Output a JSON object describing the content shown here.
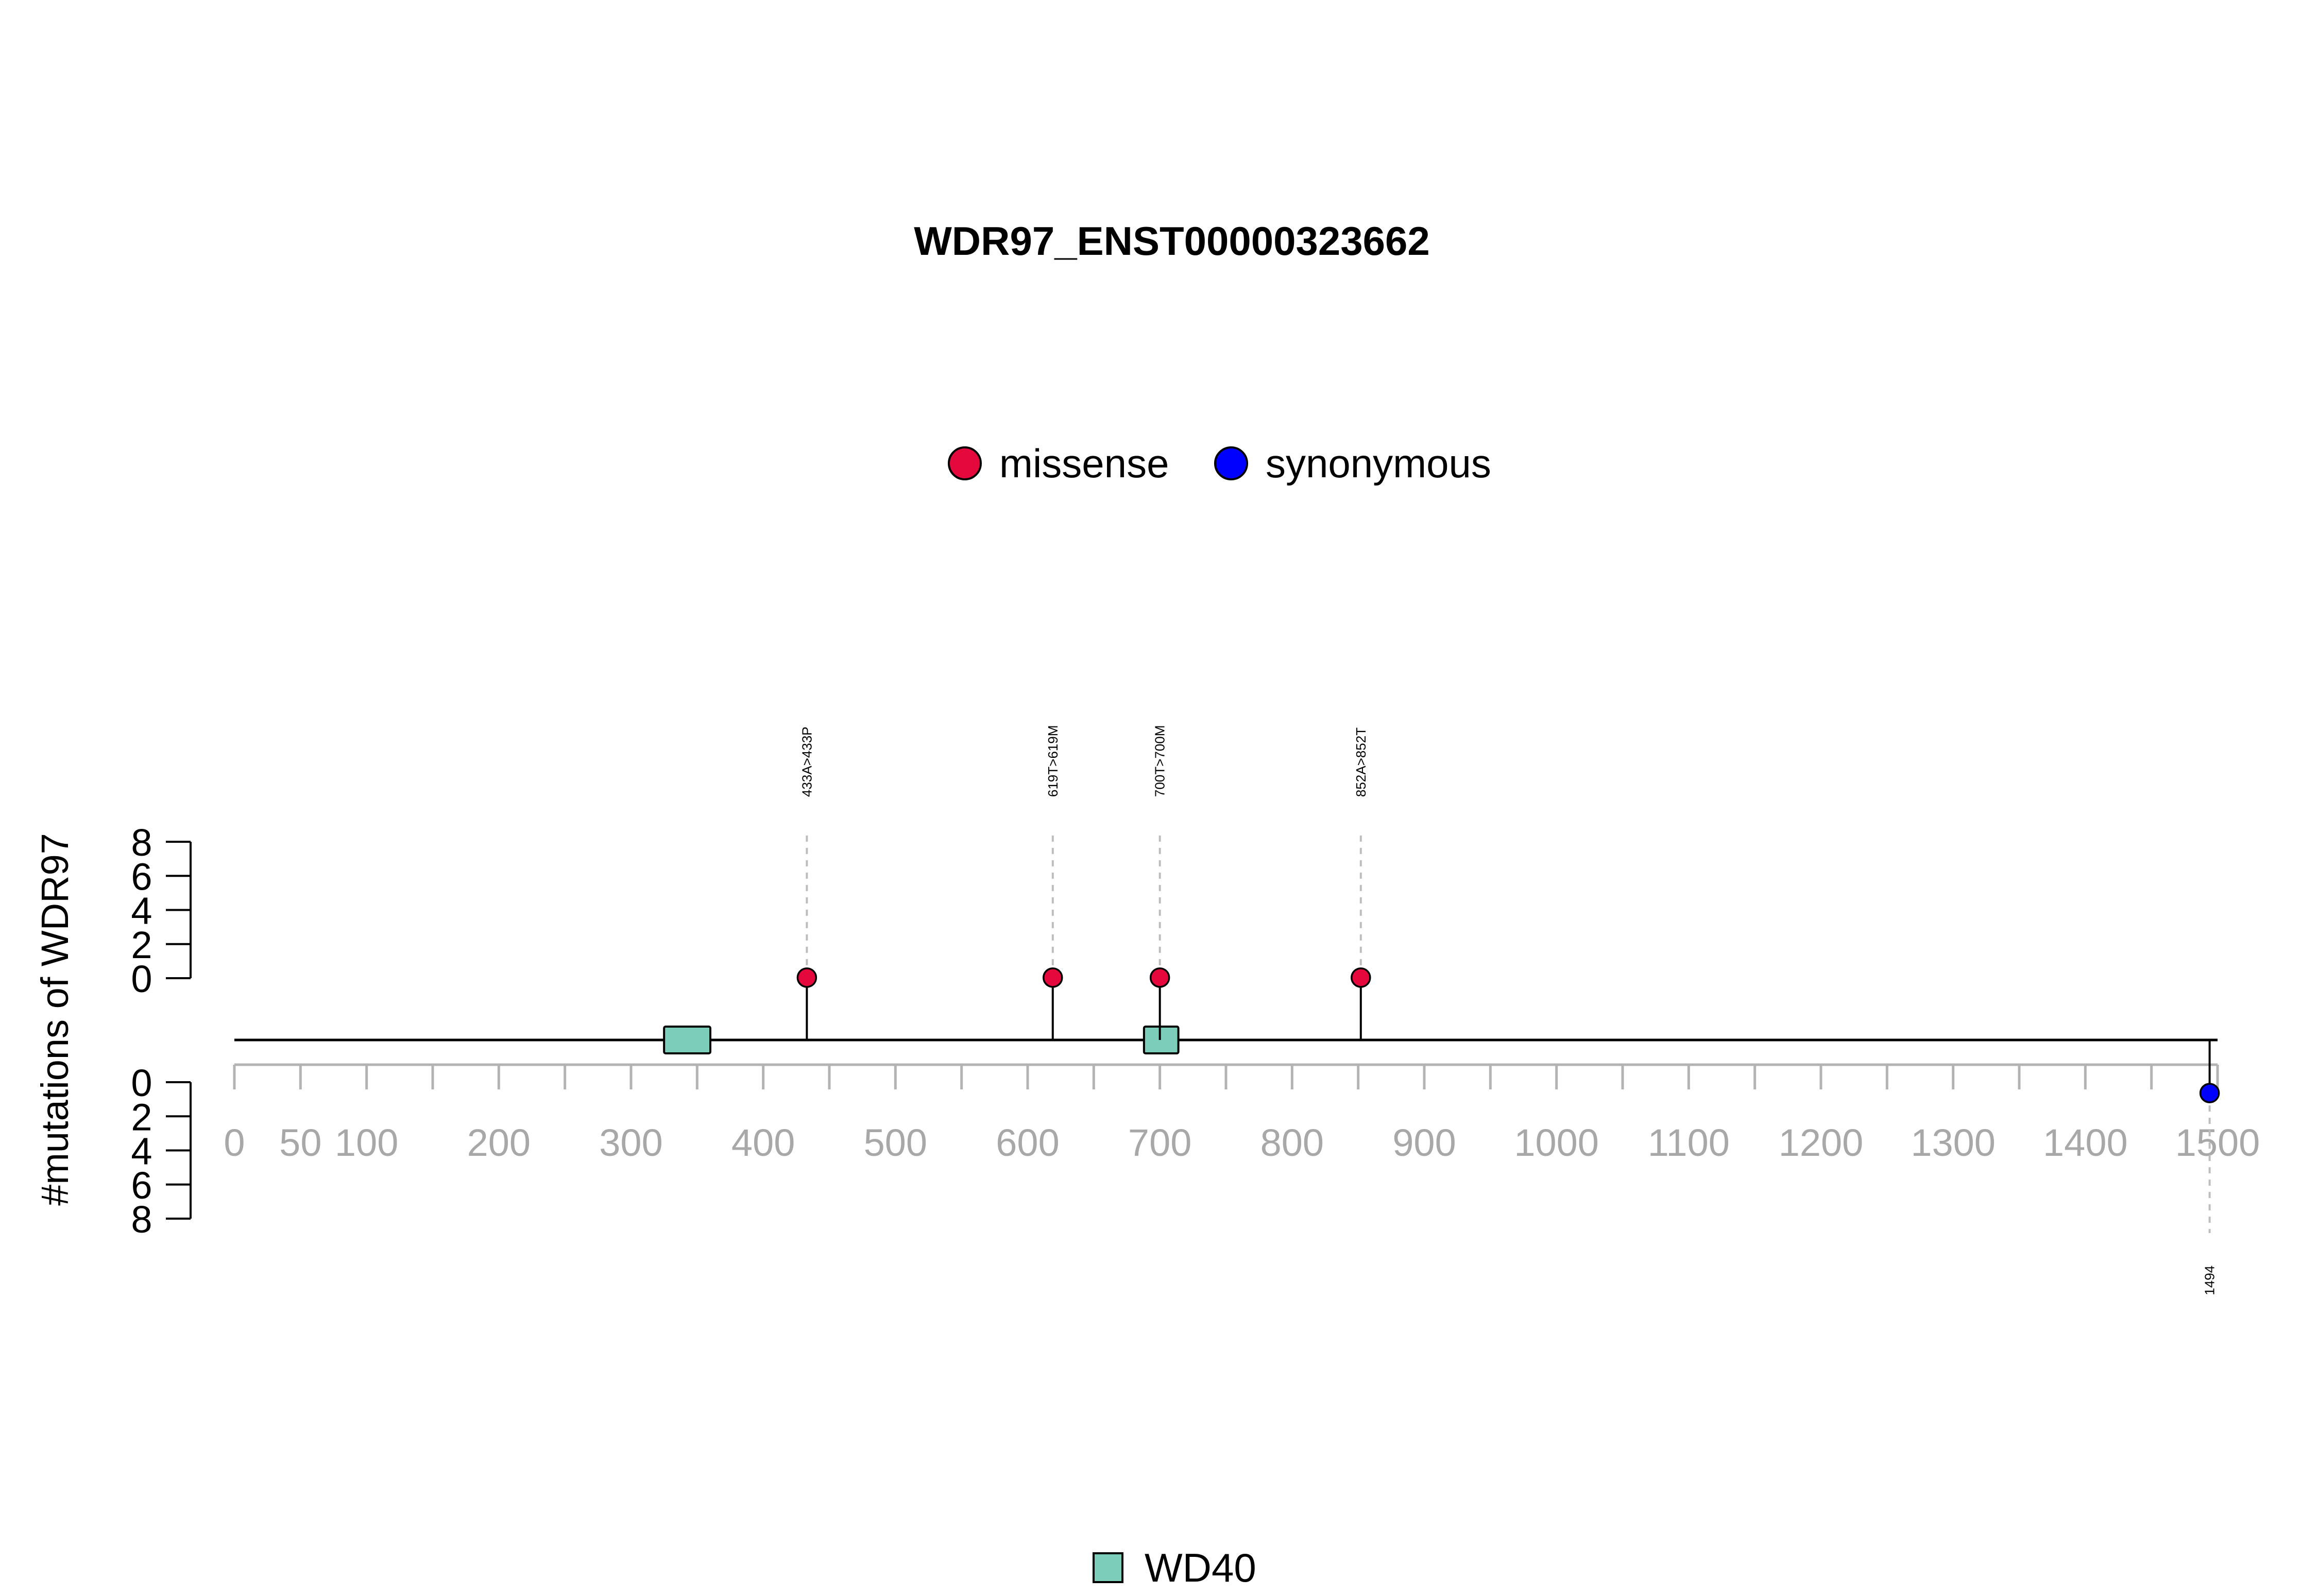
{
  "chart_data": {
    "type": "lollipop",
    "title": "WDR97_ENST00000323662",
    "ylabel": "#mutations of WDR97",
    "xlim": [
      0,
      1500
    ],
    "x_ticks": [
      0,
      50,
      100,
      150,
      200,
      250,
      300,
      350,
      400,
      450,
      500,
      550,
      600,
      650,
      700,
      750,
      800,
      850,
      900,
      950,
      1000,
      1050,
      1100,
      1150,
      1200,
      1250,
      1300,
      1350,
      1400,
      1450,
      1500
    ],
    "x_tick_labels": [
      "0",
      "50",
      "100",
      "200",
      "300",
      "400",
      "500",
      "600",
      "700",
      "800",
      "900",
      "1000",
      "1100",
      "1200",
      "1300",
      "1400",
      "1500"
    ],
    "y_ticks": [
      "0",
      "2",
      "4",
      "6",
      "8"
    ],
    "ylim": [
      0,
      8
    ],
    "legend": [
      {
        "name": "missense",
        "color": "#e5083c"
      },
      {
        "name": "synonymous",
        "color": "#0000ff"
      }
    ],
    "domain_legend": [
      {
        "name": "WD40",
        "color": "#7dcdbb"
      }
    ],
    "domains": [
      {
        "name": "WD40",
        "start": 325,
        "end": 360
      },
      {
        "name": "WD40",
        "start": 688,
        "end": 714
      }
    ],
    "mutations": [
      {
        "position": 433,
        "count": 1,
        "type": "missense",
        "label": "433A>433P",
        "side": "top"
      },
      {
        "position": 619,
        "count": 1,
        "type": "missense",
        "label": "619T>619M",
        "side": "top"
      },
      {
        "position": 700,
        "count": 1,
        "type": "missense",
        "label": "700T>700M",
        "side": "top"
      },
      {
        "position": 852,
        "count": 1,
        "type": "missense",
        "label": "852A>852T",
        "side": "top"
      },
      {
        "position": 1494,
        "count": 1,
        "type": "synonymous",
        "label": "1494",
        "side": "bottom"
      }
    ]
  }
}
